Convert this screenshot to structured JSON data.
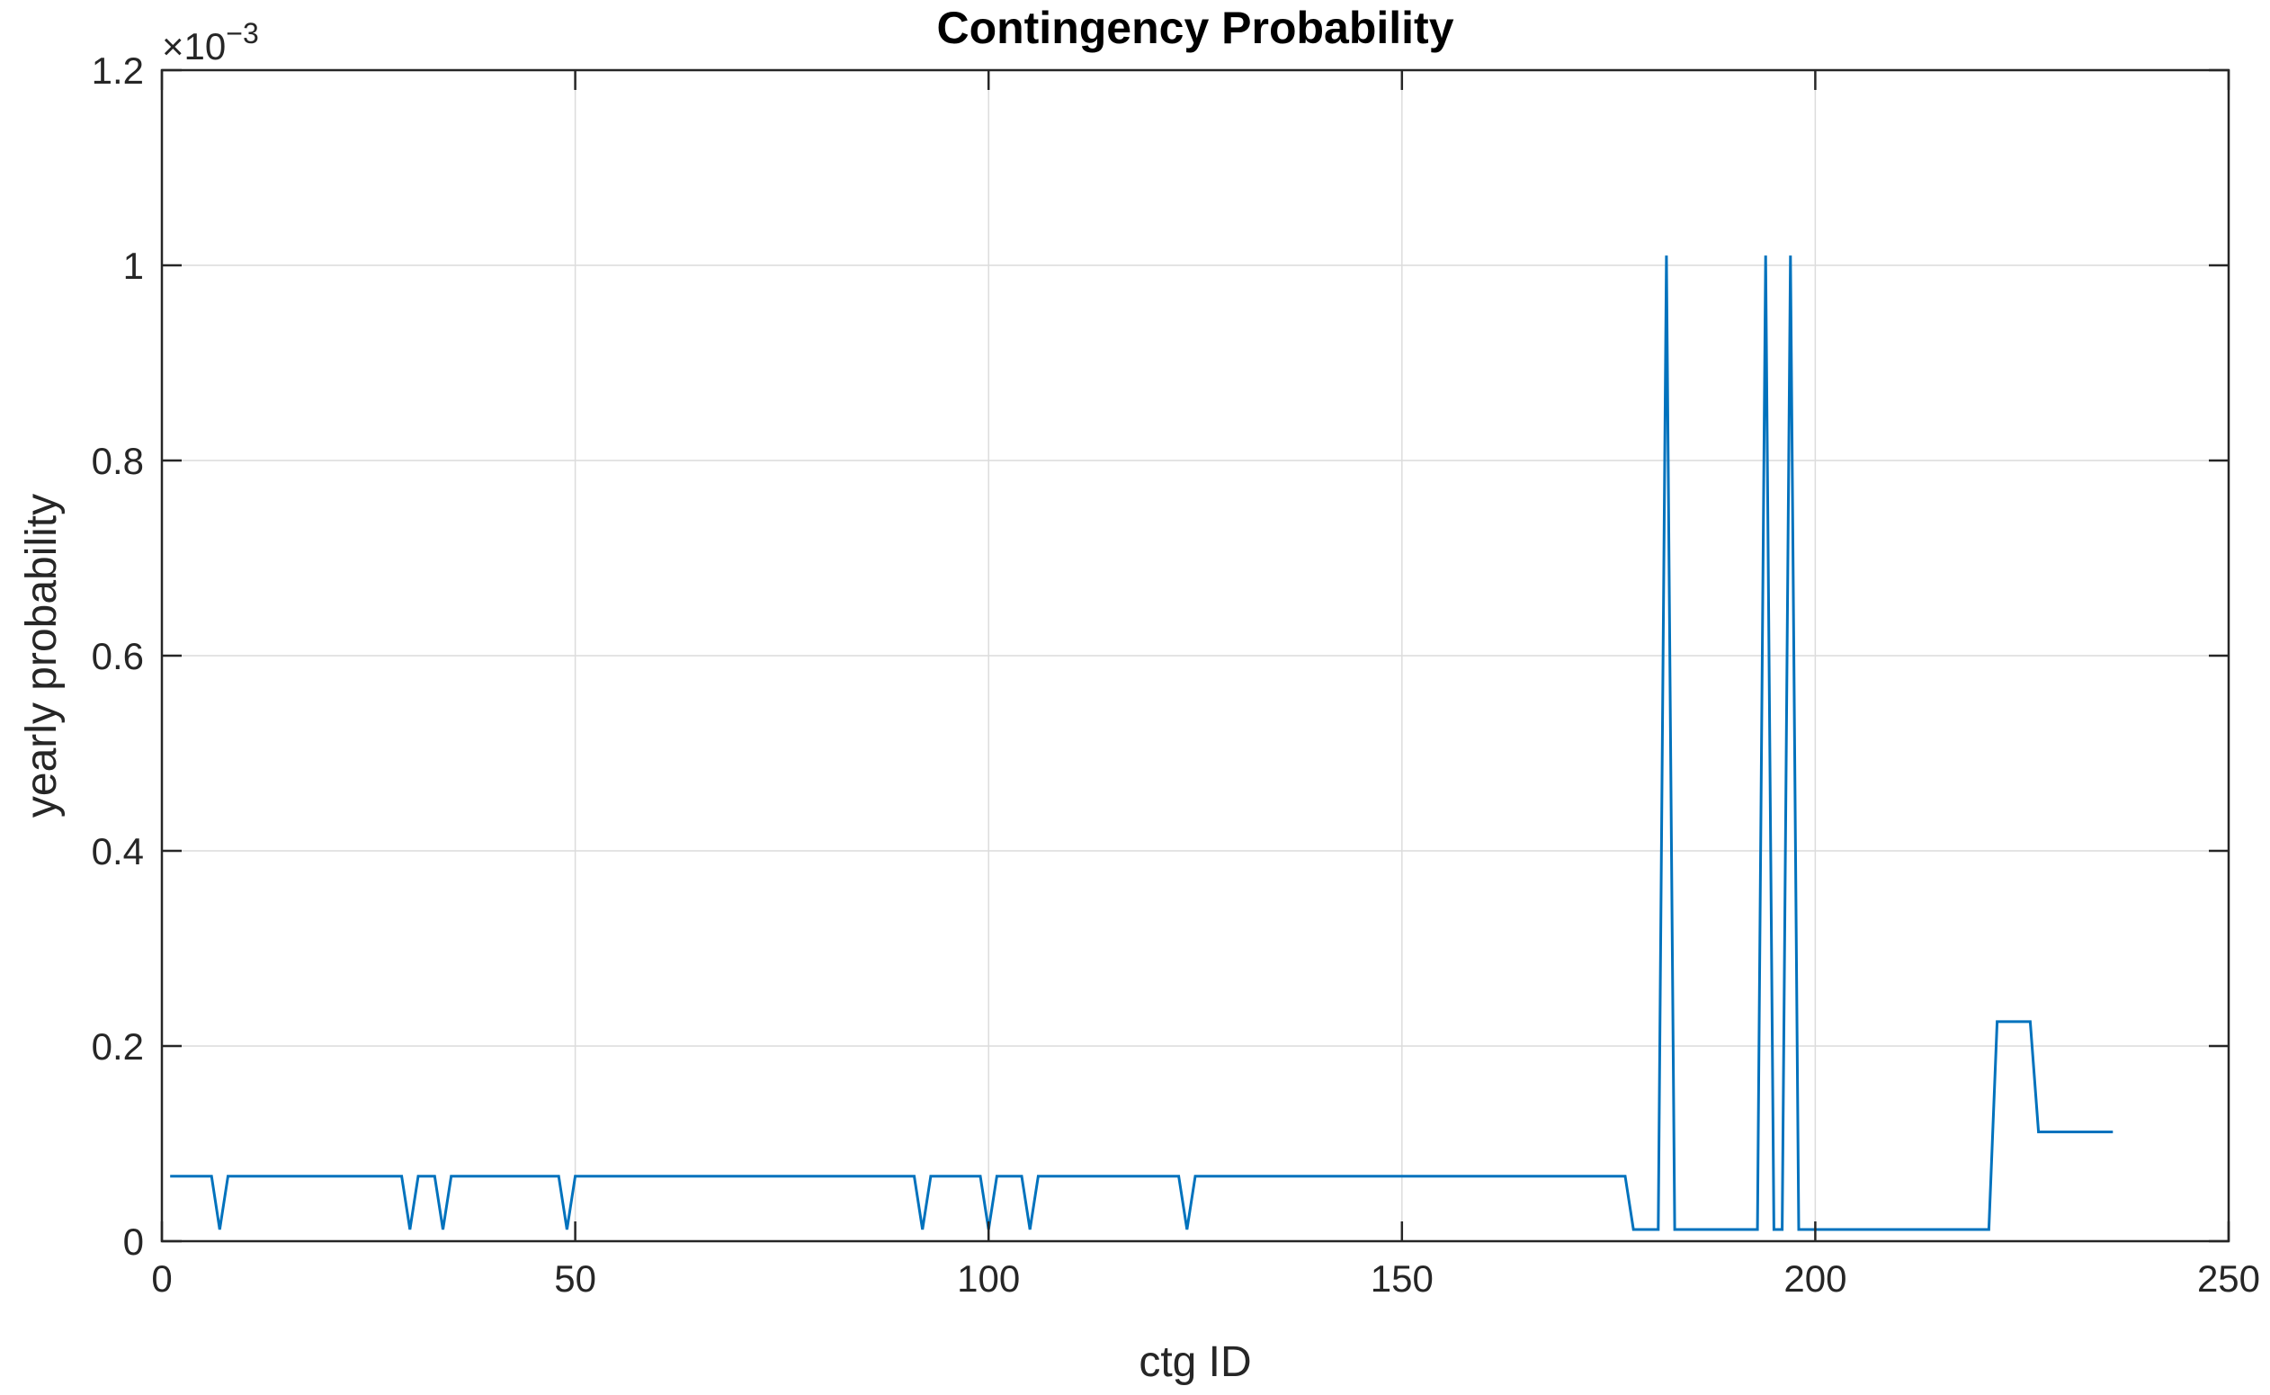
{
  "chart_data": {
    "type": "line",
    "title": "Contingency Probability",
    "xlabel": "ctg ID",
    "ylabel": "yearly probability",
    "exponent_label": "×10",
    "exponent_power": "−3",
    "xlim": [
      0,
      250
    ],
    "ylim": [
      0,
      0.0012
    ],
    "grid": true,
    "x_ticks": [
      0,
      50,
      100,
      150,
      200,
      250
    ],
    "x_tick_labels": [
      "0",
      "50",
      "100",
      "150",
      "200",
      "250"
    ],
    "y_ticks": [
      0,
      0.0002,
      0.0004,
      0.0006,
      0.0008,
      0.001,
      0.0012
    ],
    "y_tick_labels": [
      "0",
      "0.2",
      "0.4",
      "0.6",
      "0.8",
      "1",
      "1.2"
    ],
    "line_color": "#0072BD",
    "series": [
      {
        "x": [
          1,
          6,
          7,
          8,
          29,
          30,
          31,
          33,
          34,
          35,
          48,
          49,
          50,
          91,
          92,
          93,
          94,
          99,
          100,
          101,
          104,
          105,
          106,
          123,
          124,
          125,
          177,
          178,
          179,
          181,
          182,
          183,
          193,
          194,
          195,
          196,
          197,
          198,
          221,
          222,
          226,
          227,
          236
        ],
        "y": [
          6.66e-05,
          6.66e-05,
          1.2e-05,
          6.66e-05,
          6.66e-05,
          1.2e-05,
          6.66e-05,
          6.66e-05,
          1.2e-05,
          6.66e-05,
          6.66e-05,
          1.2e-05,
          6.66e-05,
          6.66e-05,
          1.2e-05,
          6.66e-05,
          6.66e-05,
          6.66e-05,
          1.2e-05,
          6.66e-05,
          6.66e-05,
          1.2e-05,
          6.66e-05,
          6.66e-05,
          1.2e-05,
          6.66e-05,
          6.66e-05,
          1.2e-05,
          1.2e-05,
          1.2e-05,
          0.00101,
          1.2e-05,
          1.2e-05,
          0.00101,
          1.2e-05,
          1.2e-05,
          0.00101,
          1.2e-05,
          1.2e-05,
          0.000225,
          0.000225,
          0.000112,
          0.000112
        ]
      }
    ]
  }
}
